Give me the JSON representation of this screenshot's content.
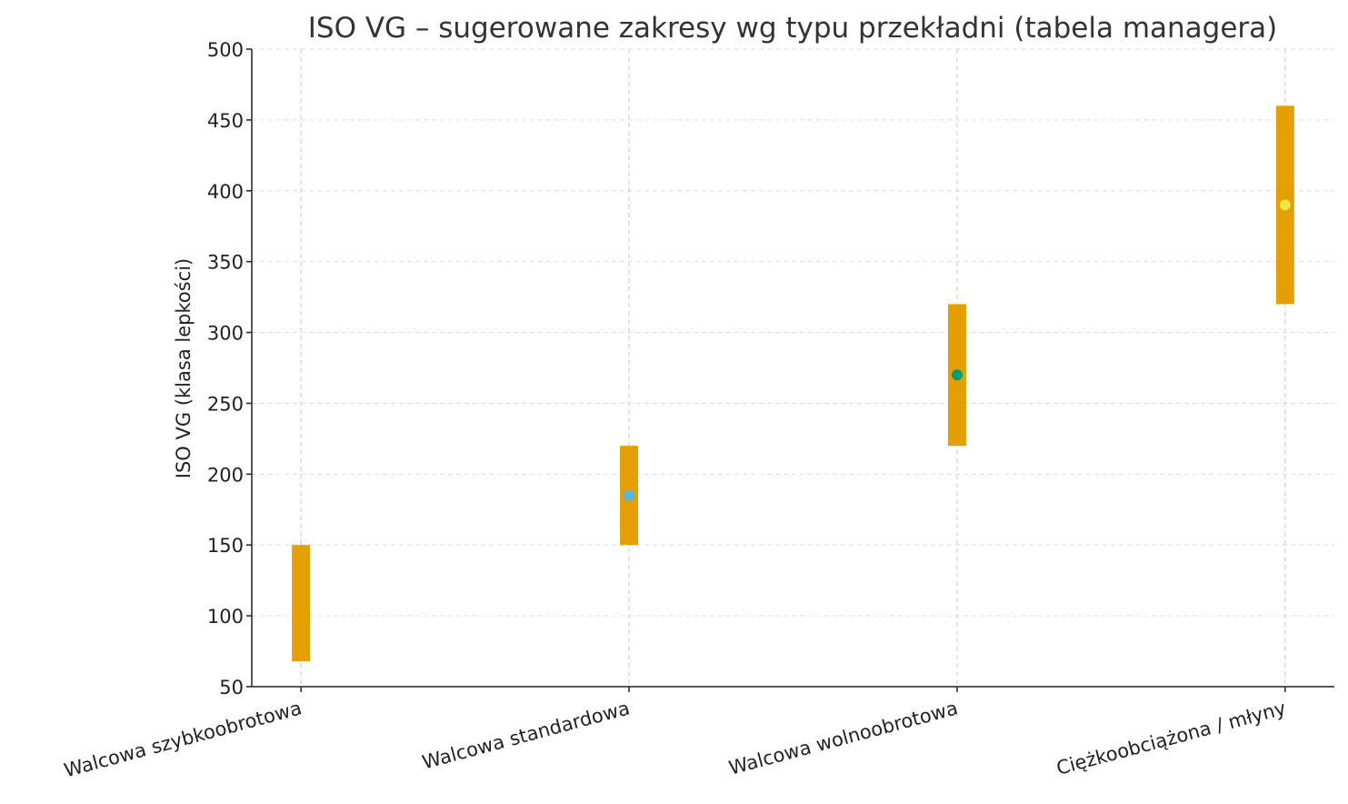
{
  "chart_data": {
    "type": "range-bar",
    "title": "ISO VG – sugerowane zakresy wg typu przekładni (tabela managera)",
    "xlabel": "",
    "ylabel": "ISO VG (klasa lepkości)",
    "ylim": [
      50,
      500
    ],
    "yticks": [
      50,
      100,
      150,
      200,
      250,
      300,
      350,
      400,
      450,
      500
    ],
    "grid": true,
    "categories": [
      "Walcowa szybkoobrotowa",
      "Walcowa standardowa",
      "Walcowa wolnoobrotowa",
      "Ciężkoobciążona / młyny"
    ],
    "ranges": [
      [
        68,
        150
      ],
      [
        150,
        220
      ],
      [
        220,
        320
      ],
      [
        320,
        460
      ]
    ],
    "midpoints": [
      109,
      185,
      270,
      390
    ],
    "bar_color": "#E69F00",
    "point_colors": [
      "#E69F00",
      "#56B4E9",
      "#009E73",
      "#F0E442"
    ]
  }
}
